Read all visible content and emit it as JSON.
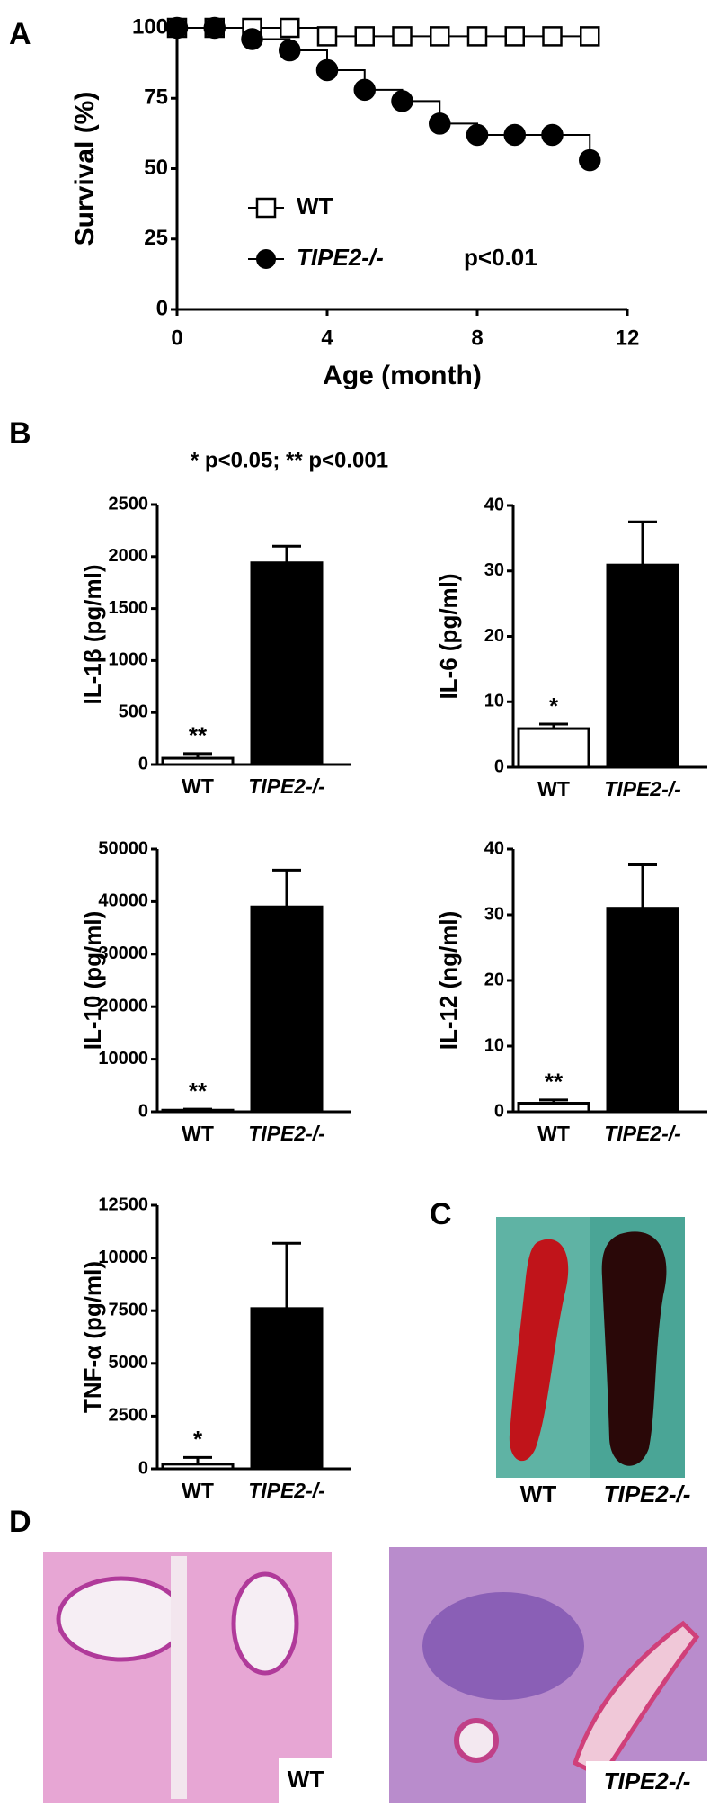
{
  "panel_labels": [
    "A",
    "B",
    "C",
    "D"
  ],
  "significance_note": "* p<0.05; ** p<0.001",
  "spleen_photo": {
    "labels": [
      "WT",
      "TIPE2-/-"
    ]
  },
  "histology": {
    "labels": [
      "WT",
      "TIPE2-/-"
    ]
  },
  "chart_data": [
    {
      "type": "line",
      "step": true,
      "xlabel": "Age (month)",
      "ylabel": "Survival (%)",
      "x": [
        0,
        1,
        2,
        3,
        4,
        5,
        6,
        7,
        8,
        9,
        10,
        11
      ],
      "series": [
        {
          "name": "WT",
          "marker": "square",
          "color": "#000000",
          "values": [
            100,
            100,
            100,
            100,
            97,
            97,
            97,
            97,
            97,
            97,
            97,
            97
          ]
        },
        {
          "name": "TIPE2-/-",
          "marker": "circle",
          "color": "#000000",
          "values": [
            100,
            100,
            96,
            92,
            85,
            78,
            74,
            66,
            62,
            62,
            62,
            53
          ]
        }
      ],
      "annotation": "p<0.01",
      "xlim": [
        0,
        12
      ],
      "xticks": [
        0,
        4,
        8,
        12
      ],
      "ylim": [
        0,
        100
      ],
      "yticks": [
        0,
        25,
        50,
        75,
        100
      ]
    },
    {
      "type": "bar",
      "ylabel": "IL-1β (pg/ml)",
      "categories": [
        "WT",
        "TIPE2-/-"
      ],
      "colors": [
        "#ffffff",
        "#000000"
      ],
      "values": [
        60,
        1940
      ],
      "errors": [
        45,
        160
      ],
      "annotation": "**",
      "ylim": [
        0,
        2500
      ],
      "yticks": [
        0,
        500,
        1000,
        1500,
        2000,
        2500
      ]
    },
    {
      "type": "bar",
      "ylabel": "IL-6 (pg/ml)",
      "categories": [
        "WT",
        "TIPE2-/-"
      ],
      "colors": [
        "#ffffff",
        "#000000"
      ],
      "values": [
        5.9,
        30.9
      ],
      "errors": [
        0.7,
        6.6
      ],
      "annotation": "*",
      "ylim": [
        0,
        40
      ],
      "yticks": [
        0,
        10,
        20,
        30,
        40
      ]
    },
    {
      "type": "bar",
      "ylabel": "IL-10 (pg/ml)",
      "categories": [
        "WT",
        "TIPE2-/-"
      ],
      "colors": [
        "#ffffff",
        "#000000"
      ],
      "values": [
        300,
        39000
      ],
      "errors": [
        200,
        7000
      ],
      "annotation": "**",
      "ylim": [
        0,
        50000
      ],
      "yticks": [
        0,
        10000,
        20000,
        30000,
        40000,
        50000
      ]
    },
    {
      "type": "bar",
      "ylabel": "IL-12 (ng/ml)",
      "categories": [
        "WT",
        "TIPE2-/-"
      ],
      "colors": [
        "#ffffff",
        "#000000"
      ],
      "values": [
        1.3,
        31
      ],
      "errors": [
        0.5,
        6.6
      ],
      "annotation": "**",
      "ylim": [
        0,
        40
      ],
      "yticks": [
        0,
        10,
        20,
        30,
        40
      ]
    },
    {
      "type": "bar",
      "ylabel": "TNF-α (pg/ml)",
      "categories": [
        "WT",
        "TIPE2-/-"
      ],
      "colors": [
        "#ffffff",
        "#000000"
      ],
      "values": [
        220,
        7600
      ],
      "errors": [
        320,
        3100
      ],
      "annotation": "*",
      "ylim": [
        0,
        12500
      ],
      "yticks": [
        0,
        2500,
        5000,
        7500,
        10000,
        12500
      ]
    }
  ]
}
